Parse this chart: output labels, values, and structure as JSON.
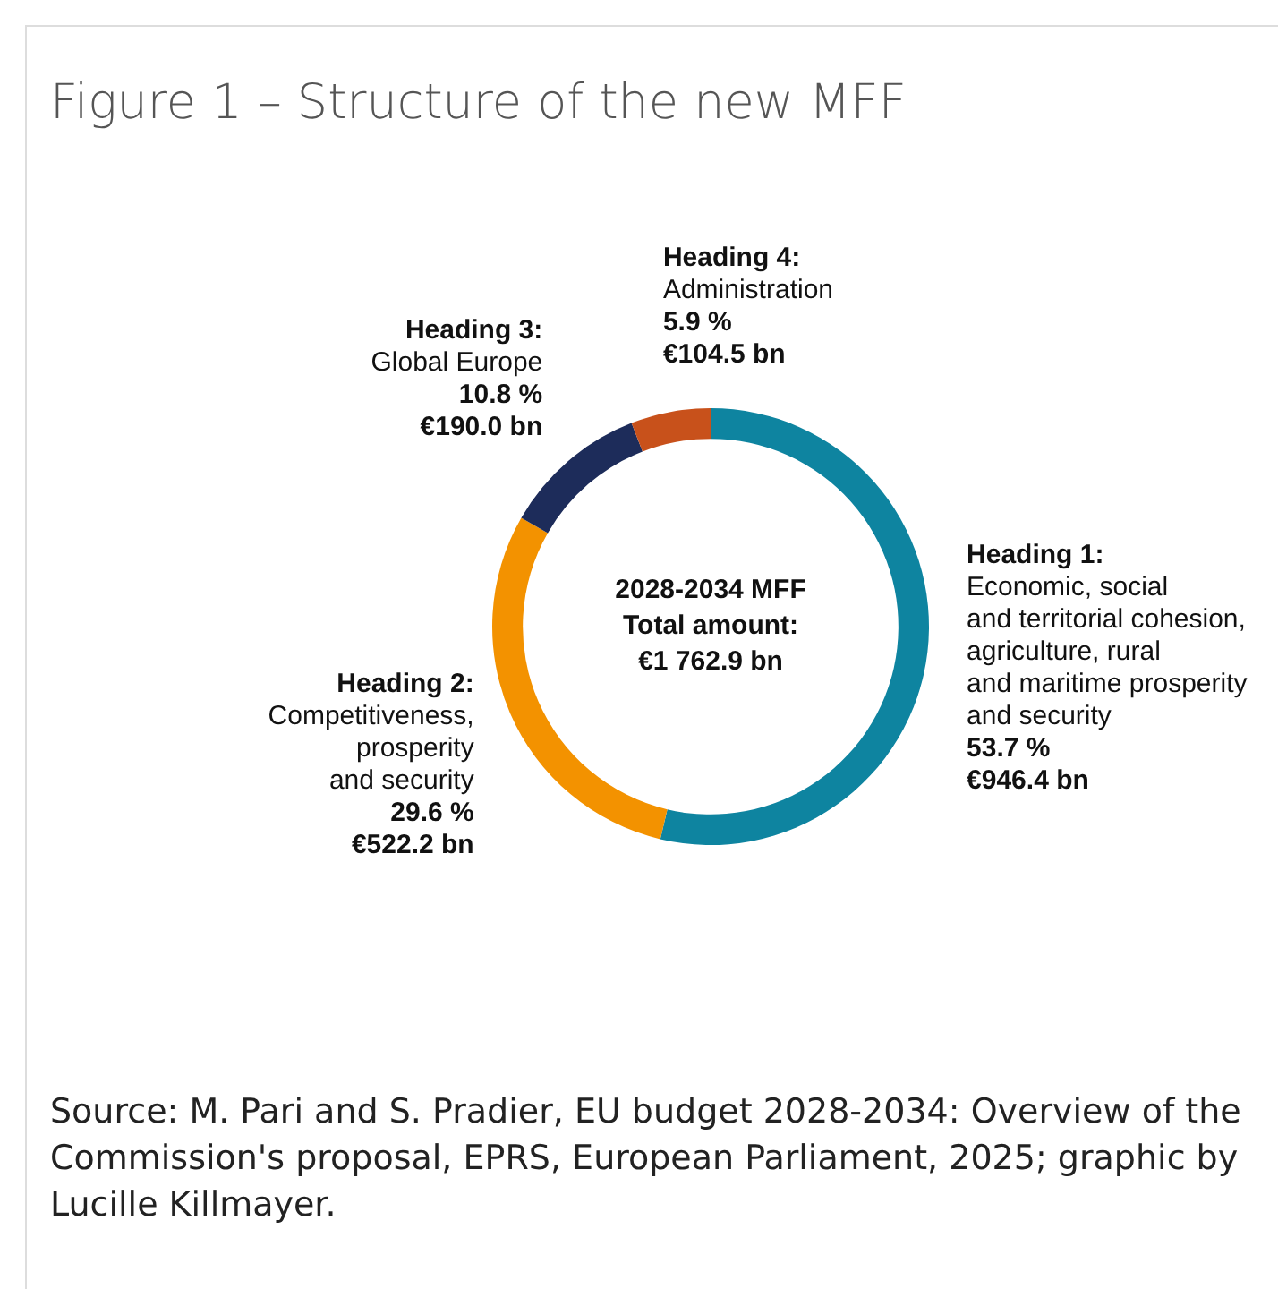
{
  "chart_data": {
    "type": "donut",
    "title": "Figure 1 – Structure of the new MFF",
    "categories": [
      "Heading 1:\nEconomic, social\nand territorial cohesion,\nagriculture, rural\nand maritime prosperity\nand security",
      "Heading 2:\nCompetitiveness,\nprosperity\nand security",
      "Heading 3:\nGlobal Europe",
      "Heading 4:\nAdministration"
    ],
    "values": [
      53.7,
      29.6,
      10.8,
      5.9
    ],
    "colors": [
      "#0e84a0",
      "#f39200",
      "#1d2c5a",
      "#c8511b"
    ],
    "value_labels": [
      "53.7 %",
      "29.6 %",
      "10.8 %",
      "5.9 %"
    ],
    "annotations": [
      "2028-2034 MFF\nTotal amount:\n€1 762.9 bn",
      "Source: M. Pari and S. Pradier, EU budget 2028-2034: Overview of the Commission's proposal, EPRS, European Parliament, 2025; graphic by Lucille Killmayer.",
      {
        "text": "€946.4 bn",
        "x": "Heading 1:\nEconomic, social\nand territorial cohesion,\nagriculture, rural\nand maritime prosperity\nand security"
      },
      {
        "text": "€522.2 bn",
        "x": "Heading 2:\nCompetitiveness,\nprosperity\nand security"
      },
      {
        "text": "€190.0 bn",
        "x": "Heading 3:\nGlobal Europe"
      },
      {
        "text": "€104.5 bn",
        "x": "Heading 4:\nAdministration"
      }
    ],
    "legend": false
  }
}
